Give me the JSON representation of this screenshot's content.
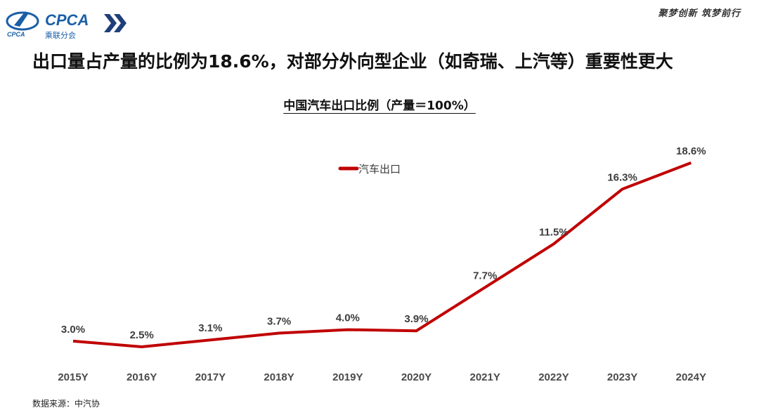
{
  "logo": {
    "name": "CPCA",
    "subtitle": "乘联分会",
    "icon": "cpca-logo-icon"
  },
  "slogan": "聚梦创新 筑梦前行",
  "headline": "出口量占产量的比例为18.6%，对部分外向型企业（如奇瑞、上汽等）重要性更大",
  "source": "数据来源：中汽协",
  "colors": {
    "series": "#c00000",
    "logo": "#1a5fa8"
  },
  "chart_data": {
    "type": "line",
    "title": "中国汽车出口比例（产量＝100%）",
    "categories": [
      "2015Y",
      "2016Y",
      "2017Y",
      "2018Y",
      "2019Y",
      "2020Y",
      "2021Y",
      "2022Y",
      "2023Y",
      "2024Y"
    ],
    "series": [
      {
        "name": "汽车出口",
        "values": [
          3.0,
          2.5,
          3.1,
          3.7,
          4.0,
          3.9,
          7.7,
          11.5,
          16.3,
          18.6
        ],
        "labels": [
          "3.0%",
          "2.5%",
          "3.1%",
          "3.7%",
          "4.0%",
          "3.9%",
          "7.7%",
          "11.5%",
          "16.3%",
          "18.6%"
        ],
        "color": "#c00000"
      }
    ],
    "ylim": [
      0,
      20
    ],
    "xlabel": "",
    "ylabel": "",
    "grid": false,
    "legend": "top-center"
  }
}
